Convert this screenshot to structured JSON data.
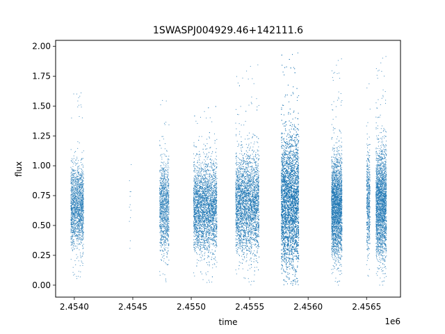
{
  "chart_data": {
    "type": "scatter",
    "title": "1SWASPJ004929.46+142111.6",
    "xlabel": "time",
    "ylabel": "flux",
    "x_offset_label": "1e6",
    "xlim": [
      2453840,
      2456790
    ],
    "ylim": [
      -0.1,
      2.05
    ],
    "x_ticks": [
      2454000,
      2454500,
      2455000,
      2455500,
      2456000,
      2456500
    ],
    "x_tick_labels": [
      "2.4540",
      "2.4545",
      "2.4550",
      "2.4555",
      "2.4560",
      "2.4565"
    ],
    "y_ticks": [
      0.0,
      0.25,
      0.5,
      0.75,
      1.0,
      1.25,
      1.5,
      1.75,
      2.0
    ],
    "y_tick_labels": [
      "0.00",
      "0.25",
      "0.50",
      "0.75",
      "1.00",
      "1.25",
      "1.50",
      "1.75",
      "2.00"
    ],
    "grid": false,
    "point_color": "#1f77b4",
    "segments": [
      {
        "x_start": 2453970,
        "x_end": 2454080,
        "count": 1600,
        "center": 0.65,
        "spread": 0.17,
        "y_min": 0.05,
        "y_max": 1.65
      },
      {
        "x_start": 2454470,
        "x_end": 2454490,
        "count": 12,
        "center": 0.7,
        "spread": 0.2,
        "y_min": 0.2,
        "y_max": 1.05
      },
      {
        "x_start": 2454730,
        "x_end": 2454810,
        "count": 1100,
        "center": 0.65,
        "spread": 0.18,
        "y_min": 0.0,
        "y_max": 1.65
      },
      {
        "x_start": 2455020,
        "x_end": 2455220,
        "count": 3200,
        "center": 0.65,
        "spread": 0.18,
        "y_min": 0.0,
        "y_max": 1.5
      },
      {
        "x_start": 2455380,
        "x_end": 2455580,
        "count": 3400,
        "center": 0.68,
        "spread": 0.2,
        "y_min": 0.0,
        "y_max": 1.85
      },
      {
        "x_start": 2455770,
        "x_end": 2455920,
        "count": 6200,
        "center": 0.7,
        "spread": 0.27,
        "y_min": 0.0,
        "y_max": 1.95
      },
      {
        "x_start": 2456200,
        "x_end": 2456290,
        "count": 2600,
        "center": 0.65,
        "spread": 0.2,
        "y_min": 0.0,
        "y_max": 1.9
      },
      {
        "x_start": 2456500,
        "x_end": 2456530,
        "count": 500,
        "center": 0.7,
        "spread": 0.2,
        "y_min": 0.05,
        "y_max": 1.8
      },
      {
        "x_start": 2456580,
        "x_end": 2456670,
        "count": 2400,
        "center": 0.68,
        "spread": 0.22,
        "y_min": 0.0,
        "y_max": 1.92
      }
    ]
  }
}
